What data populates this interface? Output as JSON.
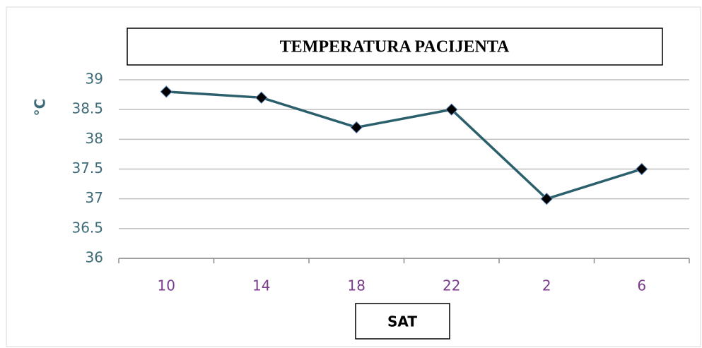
{
  "chart_data": {
    "type": "line",
    "title": "TEMPERATURA PACIJENTA",
    "ylabel": "°C",
    "xlabel": "SAT",
    "categories": [
      "10",
      "14",
      "18",
      "22",
      "2",
      "6"
    ],
    "values": [
      38.8,
      38.7,
      38.2,
      38.5,
      37,
      37.5
    ],
    "color": "#2b5f6c",
    "marker_color": "#000000",
    "ylim": [
      36,
      39
    ],
    "yticks": [
      36,
      36.5,
      37,
      37.5,
      38,
      38.5,
      39
    ],
    "grid": true
  }
}
